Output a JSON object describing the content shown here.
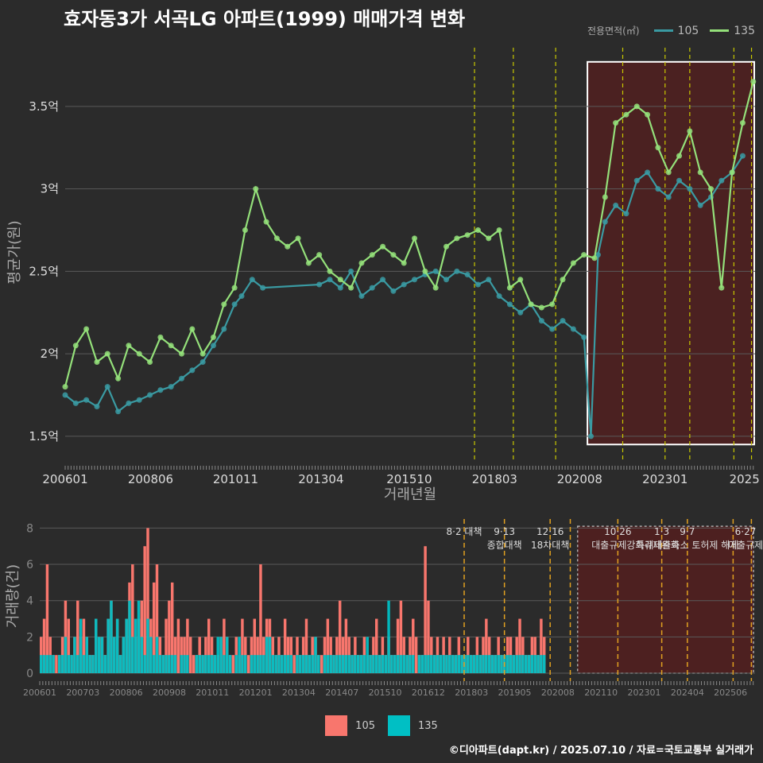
{
  "title": "효자동3가 서곡LG 아파트(1999) 매매가격 변화",
  "footer": "©디아파트(dapt.kr) / 2025.07.10 / 자료=국토교통부 실거래가",
  "colors": {
    "c105": "#3a9aa2",
    "c135": "#94e07a",
    "bar105": "#f8766d",
    "bar135": "#00bfc4",
    "policy": "#c8c800",
    "highlight": "#5a1e1e"
  },
  "legend_top": {
    "title": "전용면적(㎡)",
    "items": [
      "105",
      "135"
    ]
  },
  "legend_bottom": {
    "items": [
      "105",
      "135"
    ]
  },
  "chart_data": [
    {
      "type": "line",
      "xlabel": "거래년월",
      "ylabel": "평균가(원)",
      "x_ticks": [
        "200601",
        "200806",
        "201011",
        "201304",
        "201510",
        "201803",
        "202008",
        "202301",
        "2025"
      ],
      "y_ticks": [
        "1.5억",
        "2억",
        "2.5억",
        "3억",
        "3.5억"
      ],
      "ylim": [
        1.35,
        3.88
      ],
      "xlim": [
        2006.0,
        2025.55
      ],
      "highlight_range": [
        2020.8,
        2025.55
      ],
      "policy_lines": [
        2017.6,
        2018.7,
        2019.9,
        2021.8,
        2023.0,
        2023.7,
        2024.95,
        2025.45
      ],
      "series": [
        {
          "name": "105",
          "x": [
            2006.0,
            2006.3,
            2006.6,
            2006.9,
            2007.2,
            2007.5,
            2007.8,
            2008.1,
            2008.4,
            2008.7,
            2009.0,
            2009.3,
            2009.6,
            2009.9,
            2010.2,
            2010.5,
            2010.8,
            2011.0,
            2011.3,
            2011.6,
            2013.2,
            2013.5,
            2013.8,
            2014.1,
            2014.4,
            2014.7,
            2015.0,
            2015.3,
            2015.6,
            2015.9,
            2016.2,
            2016.5,
            2016.8,
            2017.1,
            2017.4,
            2017.7,
            2018.0,
            2018.3,
            2018.6,
            2018.9,
            2019.2,
            2019.5,
            2019.8,
            2020.1,
            2020.4,
            2020.7,
            2020.9,
            2021.1,
            2021.3,
            2021.6,
            2021.9,
            2022.2,
            2022.5,
            2022.8,
            2023.1,
            2023.4,
            2023.7,
            2024.0,
            2024.3,
            2024.6,
            2024.9,
            2025.2
          ],
          "y": [
            1.75,
            1.7,
            1.72,
            1.68,
            1.8,
            1.65,
            1.7,
            1.72,
            1.75,
            1.78,
            1.8,
            1.85,
            1.9,
            1.95,
            2.05,
            2.15,
            2.3,
            2.35,
            2.45,
            2.4,
            2.42,
            2.45,
            2.4,
            2.5,
            2.35,
            2.4,
            2.45,
            2.38,
            2.42,
            2.45,
            2.48,
            2.5,
            2.45,
            2.5,
            2.48,
            2.42,
            2.45,
            2.35,
            2.3,
            2.25,
            2.3,
            2.2,
            2.15,
            2.2,
            2.15,
            2.1,
            1.5,
            2.6,
            2.8,
            2.9,
            2.85,
            3.05,
            3.1,
            3.0,
            2.95,
            3.05,
            3.0,
            2.9,
            2.95,
            3.05,
            3.1,
            3.2
          ]
        },
        {
          "name": "135",
          "x": [
            2006.0,
            2006.3,
            2006.6,
            2006.9,
            2007.2,
            2007.5,
            2007.8,
            2008.1,
            2008.4,
            2008.7,
            2009.0,
            2009.3,
            2009.6,
            2009.9,
            2010.2,
            2010.5,
            2010.8,
            2011.1,
            2011.4,
            2011.7,
            2012.0,
            2012.3,
            2012.6,
            2012.9,
            2013.2,
            2013.5,
            2013.8,
            2014.1,
            2014.4,
            2014.7,
            2015.0,
            2015.3,
            2015.6,
            2015.9,
            2016.2,
            2016.5,
            2016.8,
            2017.1,
            2017.4,
            2017.7,
            2018.0,
            2018.3,
            2018.6,
            2018.9,
            2019.2,
            2019.5,
            2019.8,
            2020.1,
            2020.4,
            2020.7,
            2021.0,
            2021.3,
            2021.6,
            2021.9,
            2022.2,
            2022.5,
            2022.8,
            2023.1,
            2023.4,
            2023.7,
            2024.0,
            2024.3,
            2024.6,
            2024.9,
            2025.2,
            2025.5
          ],
          "y": [
            1.8,
            2.05,
            2.15,
            1.95,
            2.0,
            1.85,
            2.05,
            2.0,
            1.95,
            2.1,
            2.05,
            2.0,
            2.15,
            2.0,
            2.1,
            2.3,
            2.4,
            2.75,
            3.0,
            2.8,
            2.7,
            2.65,
            2.7,
            2.55,
            2.6,
            2.5,
            2.45,
            2.4,
            2.55,
            2.6,
            2.65,
            2.6,
            2.55,
            2.7,
            2.5,
            2.4,
            2.65,
            2.7,
            2.72,
            2.75,
            2.7,
            2.75,
            2.4,
            2.45,
            2.3,
            2.28,
            2.3,
            2.45,
            2.55,
            2.6,
            2.58,
            2.95,
            3.4,
            3.45,
            3.5,
            3.45,
            3.25,
            3.1,
            3.2,
            3.35,
            3.1,
            3.0,
            2.4,
            3.1,
            3.4,
            3.65
          ]
        }
      ]
    },
    {
      "type": "bar",
      "xlabel": "",
      "ylabel": "거래량(건)",
      "x_ticks": [
        "200601",
        "200703",
        "200806",
        "200908",
        "201011",
        "201201",
        "201304",
        "201407",
        "201510",
        "201612",
        "201803",
        "201905",
        "202008",
        "202110",
        "202301",
        "202404",
        "202506"
      ],
      "y_ticks": [
        "0",
        "2",
        "4",
        "6",
        "8"
      ],
      "ylim": [
        0,
        8.5
      ],
      "xlim": [
        2006.0,
        2025.55
      ],
      "highlight_range": [
        2020.7,
        2025.55
      ],
      "policy_lines": [
        2017.6,
        2018.7,
        2019.95,
        2020.5,
        2021.8,
        2023.0,
        2023.7,
        2024.95,
        2025.45
      ],
      "annotations": [
        {
          "x": 2017.6,
          "lines": [
            "8·2 대책"
          ]
        },
        {
          "x": 2018.7,
          "lines": [
            "9·13",
            "종합대책"
          ]
        },
        {
          "x": 2019.95,
          "lines": [
            "12·16",
            "18차대책"
          ]
        },
        {
          "x": 2021.8,
          "lines": [
            "10·26",
            "대출규제강화"
          ]
        },
        {
          "x": 2023.0,
          "lines": [
            "1·3",
            "규제완화"
          ]
        },
        {
          "x": 2023.7,
          "lines": [
            "9·7",
            "특례대출축소 토허제 해제"
          ]
        },
        {
          "x": 2025.45,
          "lines": [
            "6·27",
            "대출규제"
          ]
        }
      ],
      "series": [
        {
          "name": "105",
          "months_start": 2006.0,
          "values": [
            2,
            3,
            6,
            2,
            1,
            1,
            1,
            2,
            4,
            3,
            1,
            2,
            4,
            2,
            3,
            2,
            1,
            1,
            3,
            2,
            2,
            1,
            3,
            4,
            2,
            3,
            1,
            2,
            3,
            5,
            6,
            2,
            3,
            4,
            7,
            8,
            3,
            5,
            6,
            2,
            1,
            3,
            4,
            5,
            2,
            3,
            2,
            2,
            3,
            2,
            1,
            1,
            2,
            1,
            2,
            3,
            2,
            1,
            1,
            2,
            3,
            2,
            1,
            1,
            2,
            1,
            3,
            2,
            1,
            2,
            3,
            2,
            6,
            2,
            3,
            3,
            2,
            1,
            2,
            1,
            3,
            2,
            2,
            1,
            2,
            1,
            2,
            3,
            1,
            2,
            2,
            1,
            1,
            2,
            3,
            2,
            1,
            2,
            4,
            2,
            3,
            2,
            1,
            2,
            1,
            1,
            2,
            1,
            1,
            2,
            3,
            1,
            2,
            1,
            2,
            1,
            1,
            3,
            4,
            2,
            1,
            2,
            3,
            2,
            1,
            1,
            7,
            4,
            2,
            1,
            2,
            1,
            2,
            1,
            2,
            1,
            1,
            2,
            1,
            1,
            2,
            1,
            1,
            2,
            1,
            2,
            3,
            2,
            1,
            1,
            2,
            1,
            1,
            2,
            2,
            1,
            2,
            3,
            2,
            1,
            1,
            2,
            2,
            1,
            3,
            2
          ]
        },
        {
          "name": "135",
          "months_start": 2006.0,
          "values": [
            1,
            1,
            1,
            1,
            1,
            0,
            1,
            1,
            2,
            1,
            1,
            2,
            1,
            3,
            1,
            2,
            1,
            1,
            3,
            2,
            2,
            1,
            3,
            4,
            2,
            3,
            1,
            2,
            3,
            4,
            2,
            3,
            4,
            2,
            1,
            3,
            2,
            1,
            2,
            1,
            1,
            1,
            1,
            1,
            1,
            0,
            1,
            1,
            1,
            0,
            0,
            1,
            1,
            1,
            1,
            1,
            1,
            1,
            2,
            2,
            1,
            2,
            1,
            0,
            1,
            2,
            1,
            1,
            0,
            1,
            1,
            1,
            1,
            1,
            2,
            2,
            1,
            1,
            1,
            1,
            1,
            1,
            1,
            0,
            1,
            1,
            1,
            1,
            1,
            1,
            2,
            1,
            0,
            1,
            1,
            1,
            1,
            1,
            1,
            1,
            1,
            1,
            1,
            1,
            1,
            1,
            1,
            2,
            1,
            1,
            1,
            1,
            1,
            1,
            4,
            1,
            1,
            1,
            1,
            1,
            1,
            1,
            1,
            0,
            1,
            1,
            1,
            1,
            1,
            1,
            1,
            1,
            1,
            1,
            1,
            1,
            1,
            1,
            1,
            1,
            1,
            1,
            1,
            1,
            1,
            1,
            1,
            1,
            1,
            1,
            1,
            1,
            1,
            1,
            1,
            1,
            1,
            1,
            1,
            1,
            1,
            1,
            1,
            1,
            1,
            1
          ]
        }
      ]
    }
  ]
}
